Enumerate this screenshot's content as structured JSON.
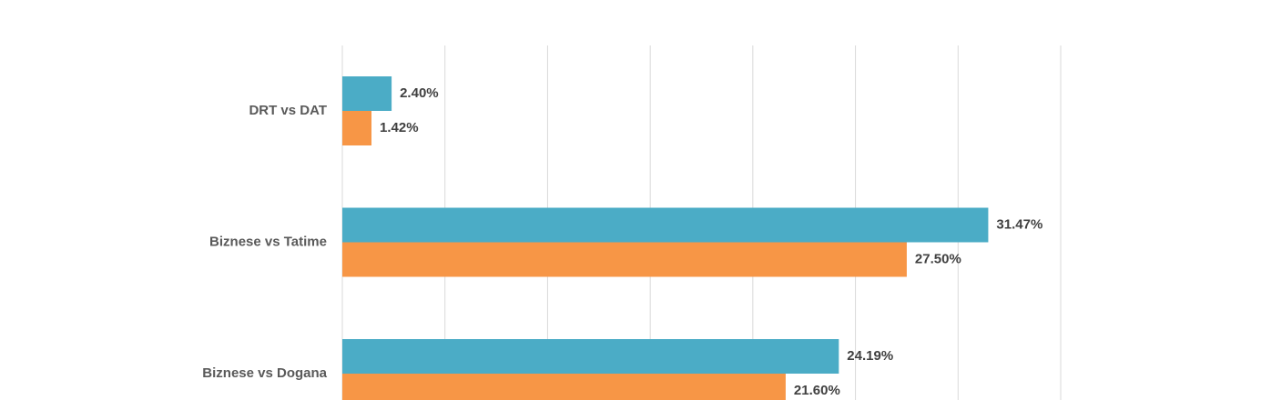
{
  "chart_data": {
    "type": "hbar",
    "categories": [
      "DRT vs DAT",
      "Biznese vs Tatime",
      "Biznese vs Dogana"
    ],
    "series": [
      {
        "color": "#4bacc6",
        "values": [
          2.4,
          31.47,
          24.19
        ],
        "value_labels": [
          "2.40%",
          "31.47%",
          "24.19%"
        ]
      },
      {
        "color": "#f79646",
        "values": [
          1.42,
          27.5,
          21.6
        ],
        "value_labels": [
          "1.42%",
          "27.50%",
          "21.60%"
        ]
      }
    ],
    "xlim": [
      0,
      35
    ],
    "xticks": [
      0,
      5,
      10,
      15,
      20,
      25,
      30,
      35
    ],
    "grid": true
  }
}
